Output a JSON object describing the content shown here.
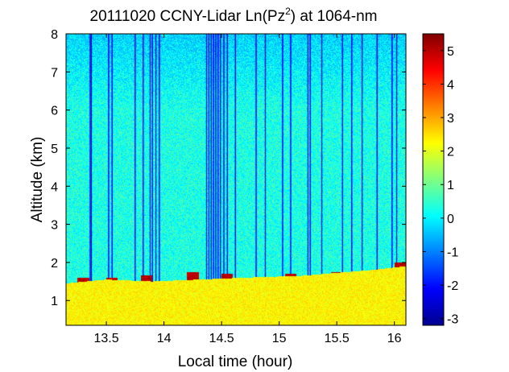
{
  "chart_data": {
    "type": "heatmap",
    "title_parts": {
      "prefix": "20111020 CCNY-Lidar Ln(Pz",
      "superscript": "2",
      "suffix": ") at 1064-nm"
    },
    "xlabel": "Local time (hour)",
    "ylabel": "Altitude (km)",
    "xlim": [
      13.15,
      16.1
    ],
    "ylim": [
      0.35,
      8.0
    ],
    "xticks": [
      13.5,
      14,
      14.5,
      15,
      15.5,
      16
    ],
    "xtick_labels": [
      "13.5",
      "14",
      "14.5",
      "15",
      "15.5",
      "16"
    ],
    "yticks": [
      1,
      2,
      3,
      4,
      5,
      6,
      7,
      8
    ],
    "ytick_labels": [
      "1",
      "2",
      "3",
      "4",
      "5",
      "6",
      "7",
      "8"
    ],
    "colorbar": {
      "range": [
        -3.2,
        5.5
      ],
      "ticks": [
        -3,
        -2,
        -1,
        0,
        1,
        2,
        3,
        4,
        5
      ],
      "tick_labels": [
        "-3",
        "-2",
        "-1",
        "0",
        "1",
        "2",
        "3",
        "4",
        "5"
      ]
    },
    "colormap": [
      "#00008f",
      "#0000ff",
      "#0080ff",
      "#00ffff",
      "#80ff80",
      "#ffff00",
      "#ff8000",
      "#ff0000",
      "#800000"
    ],
    "field": {
      "background_aloft": 0.3,
      "boundary_layer_top_km": [
        1.45,
        1.55,
        1.5,
        1.55,
        1.6,
        1.65,
        1.8,
        1.9
      ],
      "boundary_layer_top_times": [
        13.15,
        13.5,
        13.9,
        14.3,
        14.7,
        15.2,
        15.8,
        16.1
      ],
      "boundary_layer_value": 2.3,
      "cloud_value": 5.4,
      "cloud_top_km": [
        1.6,
        1.6,
        1.65,
        1.75,
        1.7,
        1.7,
        1.75,
        2.0
      ],
      "cloud_times": [
        13.3,
        13.55,
        13.85,
        14.25,
        14.55,
        15.1,
        15.5,
        16.05
      ],
      "dropout_times": [
        13.36,
        13.37,
        13.52,
        13.55,
        13.75,
        13.82,
        13.88,
        13.9,
        13.93,
        13.96,
        14.37,
        14.39,
        14.41,
        14.43,
        14.45,
        14.47,
        14.49,
        14.52,
        14.55,
        14.62,
        14.8,
        14.88,
        15.03,
        15.1,
        15.25,
        15.27,
        15.37,
        15.55,
        15.63,
        15.72,
        15.85,
        15.98,
        16.02
      ],
      "dropout_value": -3.0
    }
  }
}
